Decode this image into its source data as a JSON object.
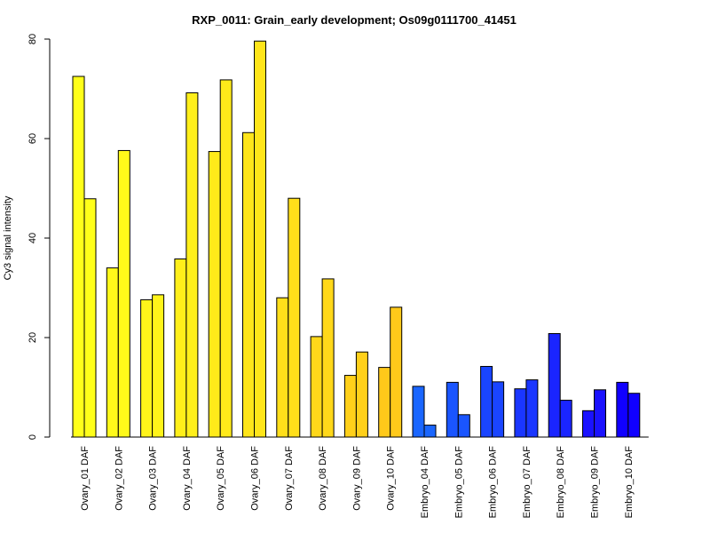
{
  "chart_data": {
    "type": "bar",
    "title": "RXP_0011: Grain_early development; Os09g0111700_41451",
    "ylabel": "Cy3 signal intensity",
    "xlabel": "",
    "ylim": [
      0,
      80
    ],
    "yticks": [
      0,
      20,
      40,
      60,
      80
    ],
    "grid": false,
    "legend": "none",
    "categories": [
      "Ovary_01 DAF",
      "Ovary_02 DAF",
      "Ovary_03 DAF",
      "Ovary_04 DAF",
      "Ovary_05 DAF",
      "Ovary_06 DAF",
      "Ovary_07 DAF",
      "Ovary_08 DAF",
      "Ovary_09 DAF",
      "Ovary_10 DAF",
      "Embryo_04 DAF",
      "Embryo_05 DAF",
      "Embryo_06 DAF",
      "Embryo_07 DAF",
      "Embryo_08 DAF",
      "Embryo_09 DAF",
      "Embryo_10 DAF"
    ],
    "colors": [
      "#ffff1a",
      "#fffa1a",
      "#fff41a",
      "#ffef1a",
      "#ffea1a",
      "#ffe51a",
      "#ffdf1a",
      "#ffd81a",
      "#ffd01a",
      "#ffc91a",
      "#1a66ff",
      "#1a55ff",
      "#1a45ff",
      "#1a36ff",
      "#1a25ff",
      "#1a12ff",
      "#1000ff"
    ],
    "series": [
      {
        "values": [
          72.5,
          34.0,
          27.6,
          35.8,
          57.4,
          61.2,
          28.0,
          20.2,
          12.4,
          14.0,
          10.2,
          11.0,
          14.2,
          9.7,
          20.8,
          5.3,
          11.0
        ]
      },
      {
        "values": [
          47.9,
          57.6,
          28.6,
          69.2,
          71.8,
          79.6,
          48.0,
          31.8,
          17.1,
          26.1,
          2.4,
          4.5,
          11.1,
          11.5,
          7.4,
          9.5,
          8.8
        ]
      }
    ]
  }
}
